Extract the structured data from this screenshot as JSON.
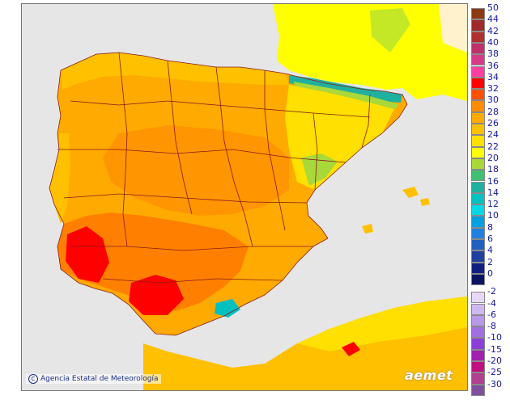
{
  "map": {
    "title": "",
    "credit": "Agencia Estatal de Meteorología",
    "brand": "aemet",
    "colors": {
      "sea": "#e6e6e6",
      "land_base": "#ffc000",
      "hot": "#ff8c00",
      "very_hot": "#ff0000",
      "mild": "#ffe000",
      "cool": "#ffff00",
      "cold": "#00c0c0",
      "border": "#8b1a1a",
      "france": "#fff2cc"
    }
  },
  "legend": {
    "positive": [
      {
        "label": "50",
        "color": "#8b3a10"
      },
      {
        "label": "44",
        "color": "#9e2a2a"
      },
      {
        "label": "42",
        "color": "#b03030"
      },
      {
        "label": "40",
        "color": "#c0306a"
      },
      {
        "label": "38",
        "color": "#d83a8a"
      },
      {
        "label": "36",
        "color": "#ff40a0"
      },
      {
        "label": "34",
        "color": "#ff0000"
      },
      {
        "label": "32",
        "color": "#ff5000"
      },
      {
        "label": "30",
        "color": "#ff8c00"
      },
      {
        "label": "28",
        "color": "#ffaa00"
      },
      {
        "label": "26",
        "color": "#ffc000"
      },
      {
        "label": "24",
        "color": "#ffe000"
      },
      {
        "label": "22",
        "color": "#ffff00"
      },
      {
        "label": "20",
        "color": "#a8d83a"
      },
      {
        "label": "18",
        "color": "#40c070"
      },
      {
        "label": "16",
        "color": "#20b0a0"
      },
      {
        "label": "14",
        "color": "#00c0c0"
      },
      {
        "label": "12",
        "color": "#00d8e8"
      },
      {
        "label": "10",
        "color": "#00a0e0"
      },
      {
        "label": "8",
        "color": "#2080e0"
      },
      {
        "label": "6",
        "color": "#2060c0"
      },
      {
        "label": "4",
        "color": "#2040a0"
      },
      {
        "label": "2",
        "color": "#102080"
      },
      {
        "label": "0",
        "color": "#0a1460"
      }
    ],
    "negative": [
      {
        "label": "-2",
        "color": "#e8d8f8"
      },
      {
        "label": "-4",
        "color": "#d0b8f0"
      },
      {
        "label": "-6",
        "color": "#b898e8"
      },
      {
        "label": "-8",
        "color": "#a070e0"
      },
      {
        "label": "-10",
        "color": "#8a40d8"
      },
      {
        "label": "-15",
        "color": "#a020b0"
      },
      {
        "label": "-20",
        "color": "#c01080"
      },
      {
        "label": "-25",
        "color": "#b04090"
      },
      {
        "label": "-30",
        "color": "#8050a0"
      }
    ]
  }
}
